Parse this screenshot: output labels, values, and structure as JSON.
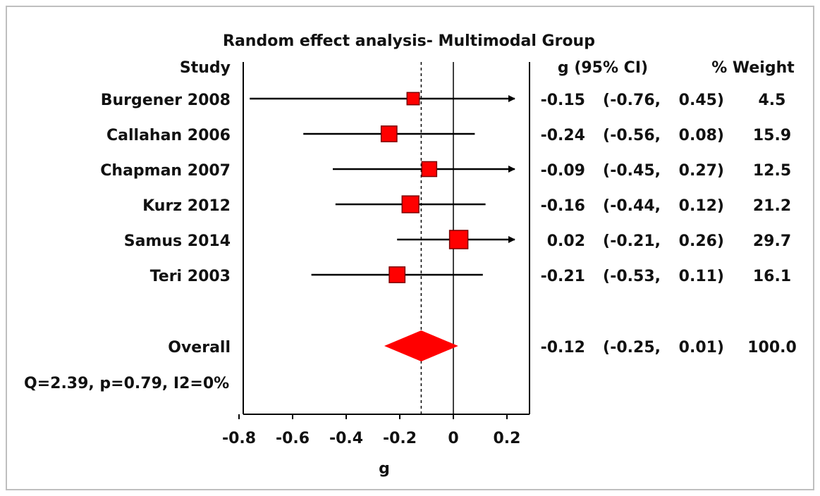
{
  "chart_data": {
    "type": "forest",
    "title": "Random effect analysis- Multimodal Group",
    "xlabel": "g",
    "xlim": [
      -0.8,
      0.25
    ],
    "xticks": [
      -0.8,
      -0.6,
      -0.4,
      -0.2,
      0,
      0.2
    ],
    "xtick_labels": [
      "-0.8",
      "-0.6",
      "-0.4",
      "-0.2",
      "0",
      "0.2"
    ],
    "column_headers": {
      "study": "Study",
      "effect": "g (95% CI)",
      "weight": "% Weight"
    },
    "studies": [
      {
        "name": "Burgener 2008",
        "g": -0.15,
        "lower": -0.76,
        "upper": 0.45,
        "weight": 4.5,
        "g_text": "-0.15",
        "lower_text": "-0.76,",
        "upper_text": "0.45)",
        "weight_text": "4.5"
      },
      {
        "name": "Callahan 2006",
        "g": -0.24,
        "lower": -0.56,
        "upper": 0.08,
        "weight": 15.9,
        "g_text": "-0.24",
        "lower_text": "-0.56,",
        "upper_text": "0.08)",
        "weight_text": "15.9"
      },
      {
        "name": "Chapman 2007",
        "g": -0.09,
        "lower": -0.45,
        "upper": 0.27,
        "weight": 12.5,
        "g_text": "-0.09",
        "lower_text": "-0.45,",
        "upper_text": "0.27)",
        "weight_text": "12.5"
      },
      {
        "name": "Kurz 2012",
        "g": -0.16,
        "lower": -0.44,
        "upper": 0.12,
        "weight": 21.2,
        "g_text": "-0.16",
        "lower_text": "-0.44,",
        "upper_text": "0.12)",
        "weight_text": "21.2"
      },
      {
        "name": "Samus 2014",
        "g": 0.02,
        "lower": -0.21,
        "upper": 0.26,
        "weight": 29.7,
        "g_text": "0.02",
        "lower_text": "-0.21,",
        "upper_text": "0.26)",
        "weight_text": "29.7"
      },
      {
        "name": "Teri 2003",
        "g": -0.21,
        "lower": -0.53,
        "upper": 0.11,
        "weight": 16.1,
        "g_text": "-0.21",
        "lower_text": "-0.53,",
        "upper_text": "0.11)",
        "weight_text": "16.1"
      }
    ],
    "overall": {
      "name": "Overall",
      "g": -0.12,
      "lower": -0.25,
      "upper": 0.01,
      "weight": 100.0,
      "g_text": "-0.12",
      "lower_text": "-0.25,",
      "upper_text": "0.01)",
      "weight_text": "100.0"
    },
    "heterogeneity": "Q=2.39, p=0.79, I2=0%",
    "colors": {
      "marker": "#ff0000",
      "marker_border": "#7a0000",
      "diamond": "#ff0000",
      "line": "#000000",
      "frame": "#bfbfbf"
    }
  }
}
